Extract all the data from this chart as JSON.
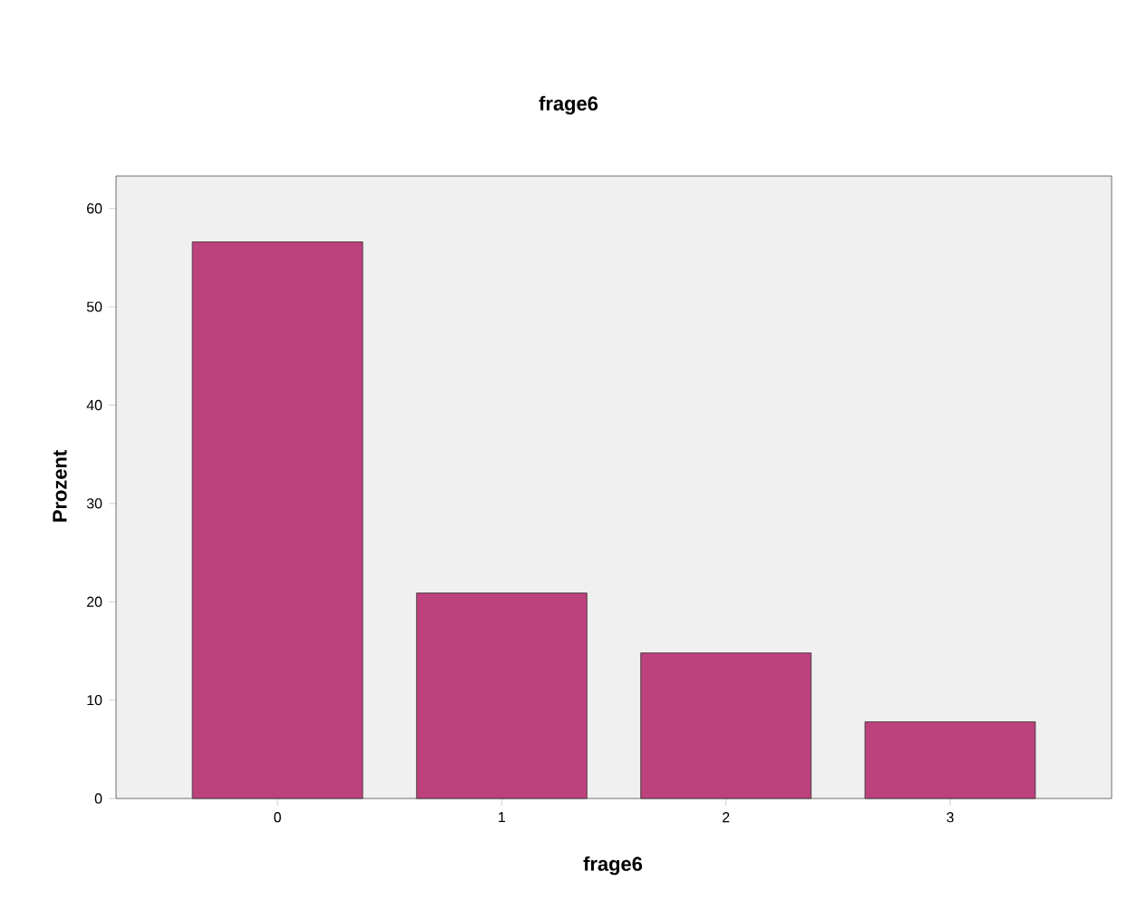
{
  "chart_data": {
    "type": "bar",
    "title": "frage6",
    "xlabel": "frage6",
    "ylabel": "Prozent",
    "categories": [
      "0",
      "1",
      "2",
      "3"
    ],
    "values": [
      56.6,
      20.9,
      14.8,
      7.8
    ],
    "color": "#bc417d",
    "ylim": [
      0,
      63.3
    ],
    "yticks": [
      0,
      10,
      20,
      30,
      40,
      50,
      60
    ],
    "grid": false
  }
}
